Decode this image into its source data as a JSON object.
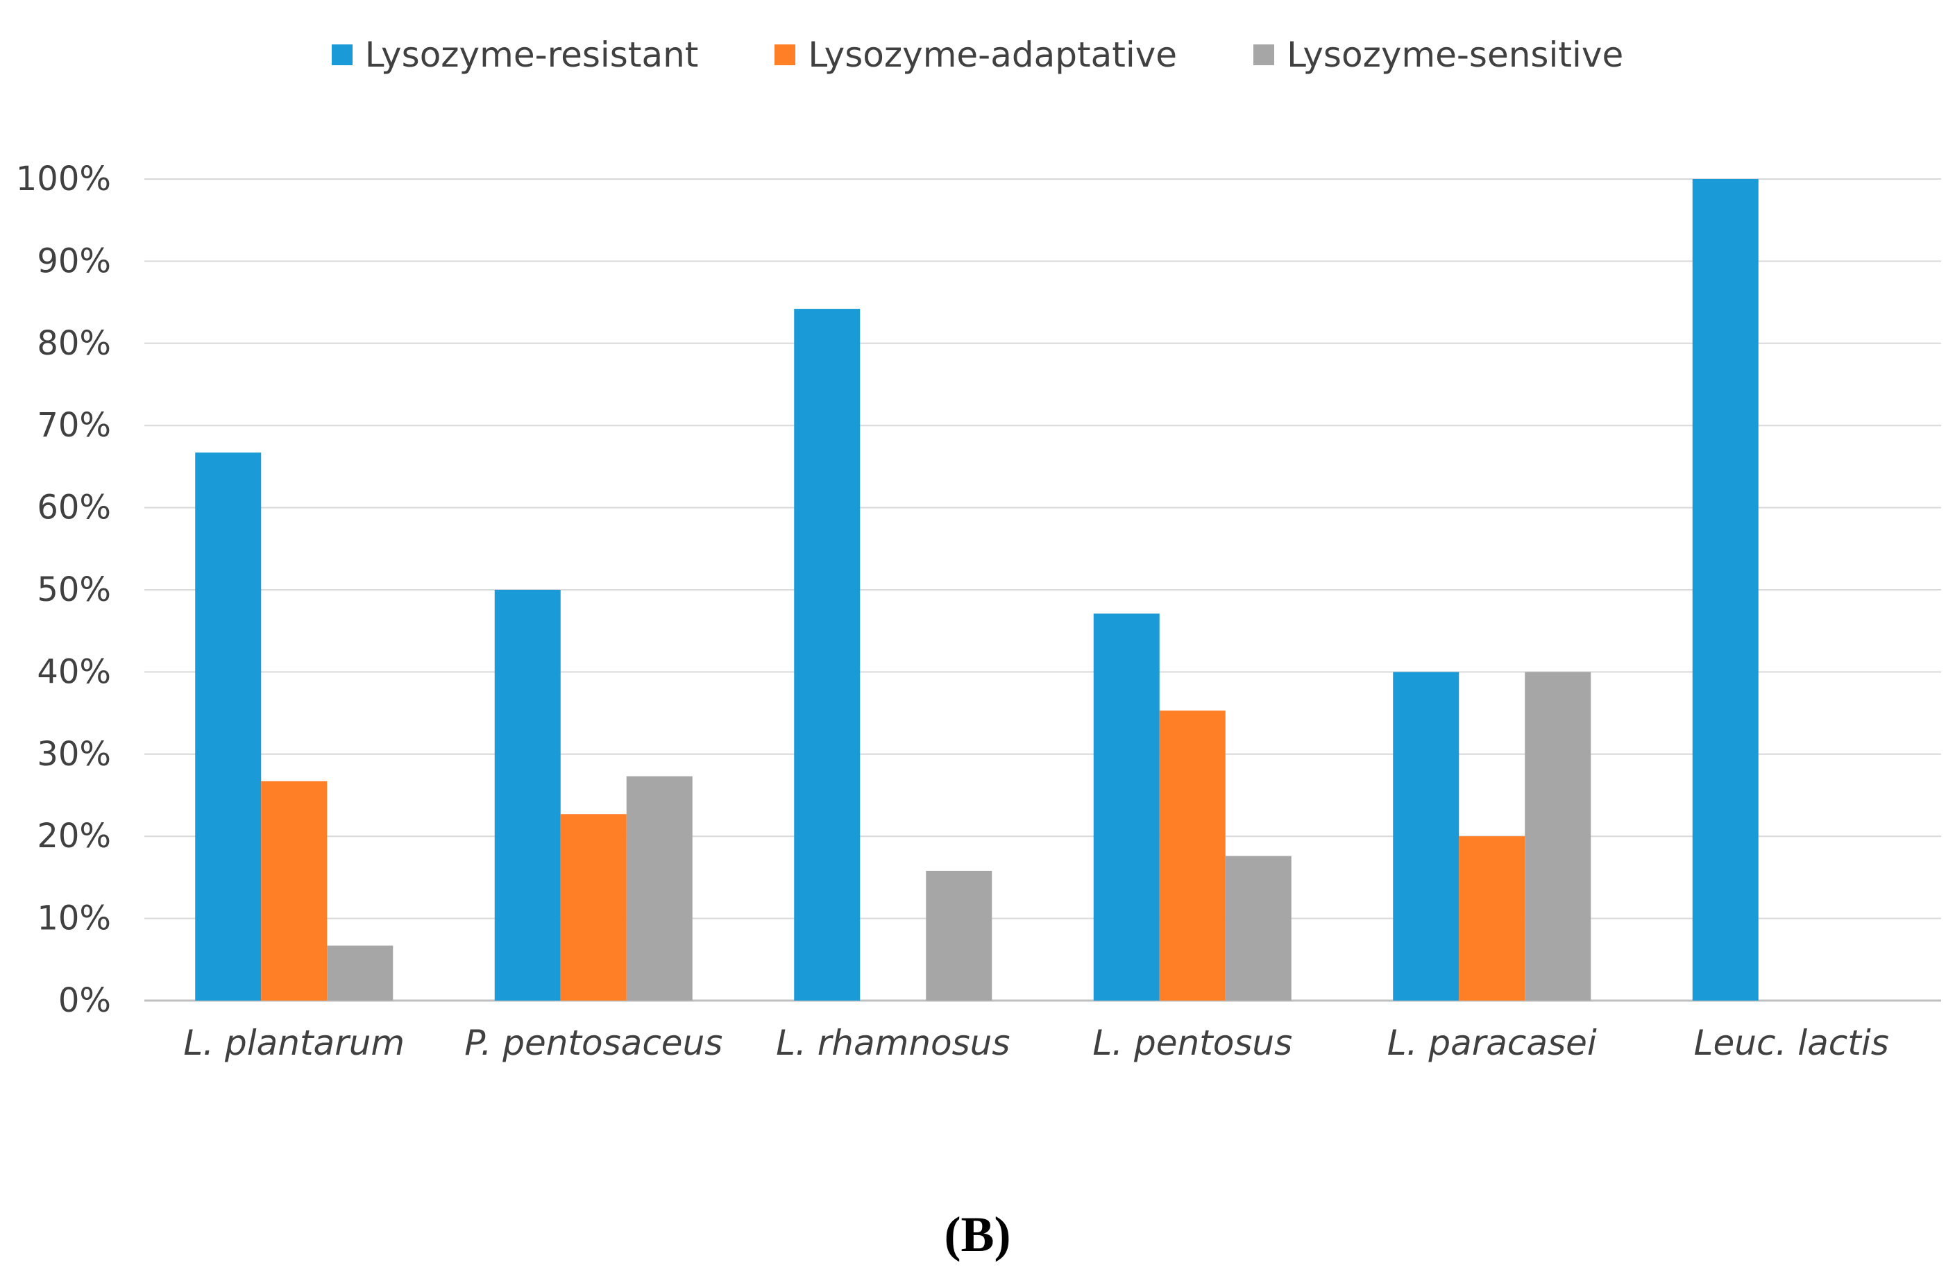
{
  "chart_data": {
    "type": "bar",
    "categories": [
      "L. plantarum",
      "P. pentosaceus",
      "L. rhamnosus",
      "L. pentosus",
      "L. paracasei",
      "Leuc. lactis"
    ],
    "series": [
      {
        "name": "Lysozyme-resistant",
        "color": "#1A9AD6",
        "values": [
          66.7,
          50.0,
          84.2,
          47.1,
          40.0,
          100.0
        ]
      },
      {
        "name": "Lysozyme-adaptative",
        "color": "#FF7F27",
        "values": [
          26.7,
          22.7,
          0,
          35.3,
          20.0,
          0
        ]
      },
      {
        "name": "Lysozyme-sensitive",
        "color": "#A6A6A6",
        "values": [
          6.7,
          27.3,
          15.8,
          17.6,
          40.0,
          0
        ]
      }
    ],
    "ylim": [
      0,
      100
    ],
    "yticks": [
      "0%",
      "10%",
      "20%",
      "30%",
      "40%",
      "50%",
      "60%",
      "70%",
      "80%",
      "90%",
      "100%"
    ],
    "ytick_values": [
      0,
      10,
      20,
      30,
      40,
      50,
      60,
      70,
      80,
      90,
      100
    ],
    "grid": true,
    "legend_position": "top-center",
    "title": "",
    "xlabel": "",
    "ylabel": ""
  },
  "panel_label": "(B)"
}
